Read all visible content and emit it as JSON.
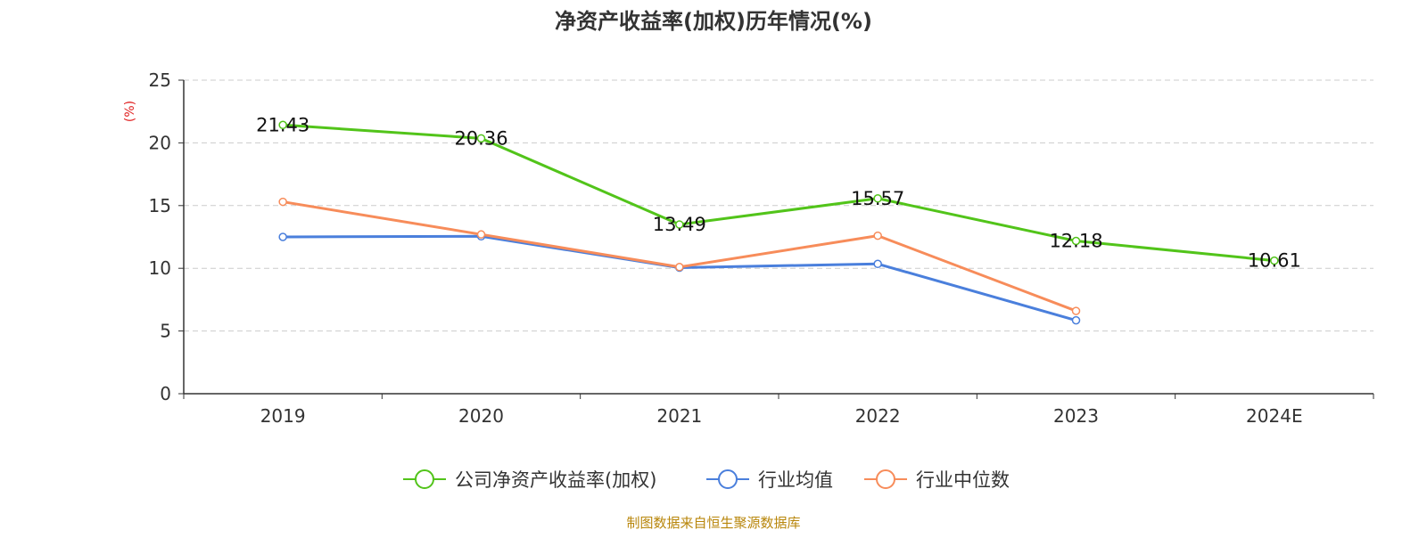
{
  "chart_data": {
    "type": "line",
    "title": "净资产收益率(加权)历年情况(%)",
    "ylabel": "(%)",
    "xlabel": "",
    "categories": [
      "2019",
      "2020",
      "2021",
      "2022",
      "2023",
      "2024E"
    ],
    "ylim": [
      0,
      25
    ],
    "yticks": [
      0,
      5,
      10,
      15,
      20,
      25
    ],
    "grid": true,
    "legend_position": "bottom-center",
    "series": [
      {
        "name": "公司净资产收益率(加权)",
        "color": "#52c41a",
        "values": [
          21.43,
          20.36,
          13.49,
          15.57,
          12.18,
          10.61
        ],
        "labels": [
          "21.43",
          "20.36",
          "13.49",
          "15.57",
          "12.18",
          "10.61"
        ]
      },
      {
        "name": "行业均值",
        "color": "#4a7fdc",
        "values": [
          12.5,
          12.55,
          10.05,
          10.35,
          5.85,
          null
        ]
      },
      {
        "name": "行业中位数",
        "color": "#f78c5a",
        "values": [
          15.3,
          12.7,
          10.1,
          12.6,
          6.6,
          null
        ]
      }
    ],
    "footer": "制图数据来自恒生聚源数据库",
    "colors": {
      "axis": "#333333",
      "grid": "#cccccc",
      "ylabel": "#e02020",
      "footer": "#b8860b"
    }
  }
}
